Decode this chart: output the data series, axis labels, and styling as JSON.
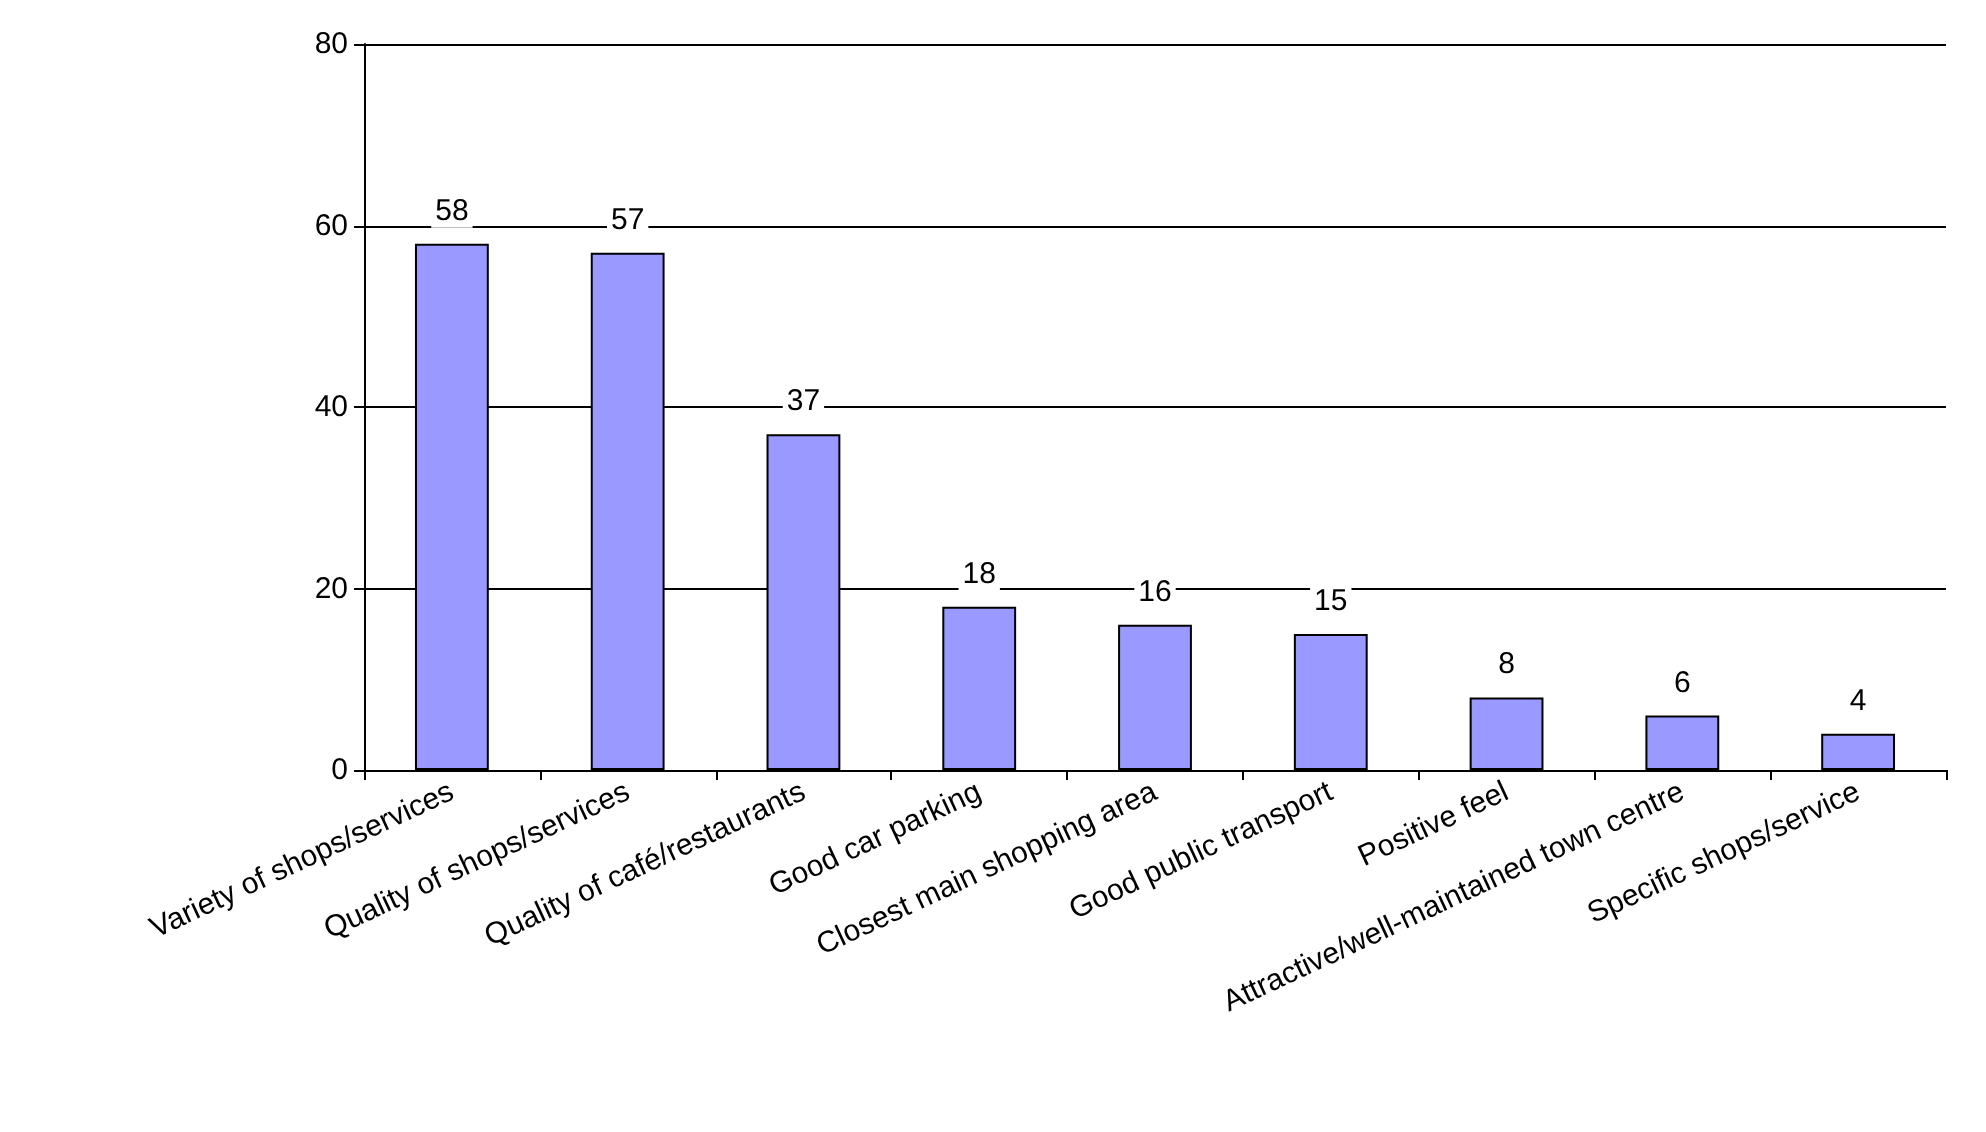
{
  "chart_data": {
    "type": "bar",
    "categories": [
      "Variety of shops/services",
      "Quality of shops/services",
      "Quality of café/restaurants",
      "Good car parking",
      "Closest main shopping area",
      "Good public transport",
      "Positive feel",
      "Attractive/well-maintained town centre",
      "Specific shops/service"
    ],
    "values": [
      58,
      57,
      37,
      18,
      16,
      15,
      8,
      6,
      4
    ],
    "color": "#9999ff",
    "ylim": [
      0,
      80
    ],
    "yticks": [
      0,
      20,
      40,
      60,
      80
    ],
    "grid": "y",
    "data_labels": true
  }
}
